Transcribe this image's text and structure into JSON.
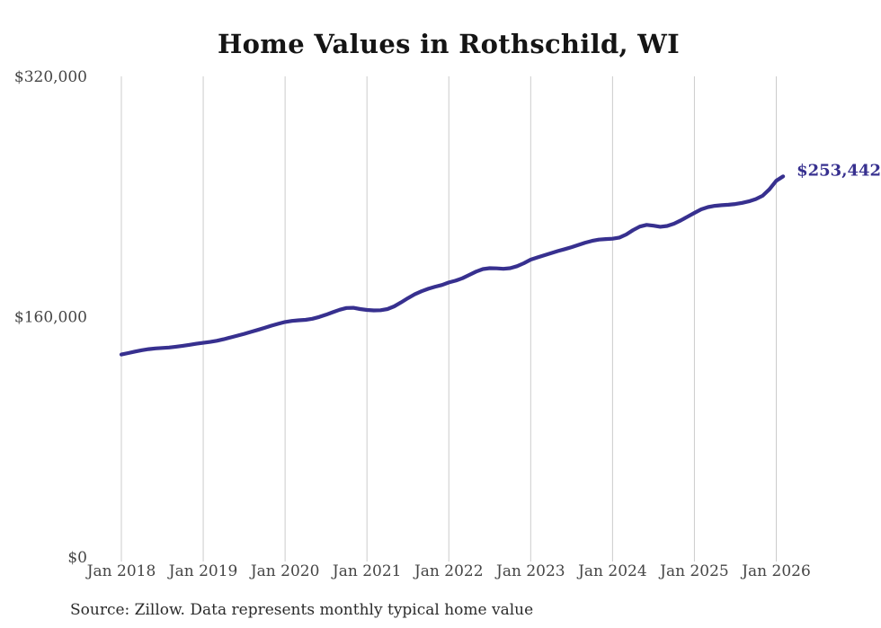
{
  "title": "Home Values in Rothschild, WI",
  "source_note": "Source: Zillow. Data represents monthly typical home value",
  "colors": {
    "line": "#37308f",
    "end_label": "#37308f",
    "gridline": "#cccccc",
    "axis_text": "#454545",
    "title_text": "#151515",
    "source_text": "#2b2b2b",
    "background": "#ffffff"
  },
  "chart_data": {
    "type": "line",
    "title": "Home Values in Rothschild, WI",
    "unit": "USD",
    "frequency": "monthly",
    "x_start": "Jan 2018",
    "x_end": "Feb 2026",
    "x_tick_labels": [
      "Jan 2018",
      "Jan 2019",
      "Jan 2020",
      "Jan 2021",
      "Jan 2022",
      "Jan 2023",
      "Jan 2024",
      "Jan 2025",
      "Jan 2026"
    ],
    "y_ticks": [
      {
        "value": 0,
        "label": "$0"
      },
      {
        "value": 160000,
        "label": "$160,000"
      },
      {
        "value": 320000,
        "label": "$320,000"
      }
    ],
    "ylim": [
      0,
      320000
    ],
    "grid": "vertical-only",
    "legend": "none",
    "last_value": 253442,
    "last_value_label": "$253,442",
    "series": [
      {
        "name": "Typical home value",
        "start": "2018-01",
        "values": [
          134800,
          135800,
          136800,
          137700,
          138400,
          138900,
          139200,
          139500,
          140000,
          140600,
          141300,
          142000,
          142600,
          143200,
          144000,
          145000,
          146200,
          147400,
          148600,
          149900,
          151200,
          152600,
          154000,
          155300,
          156500,
          157200,
          157600,
          157900,
          158600,
          159800,
          161300,
          163000,
          164600,
          165800,
          165900,
          165100,
          164500,
          164200,
          164300,
          165100,
          166900,
          169500,
          172300,
          174900,
          176900,
          178600,
          180000,
          181100,
          182800,
          184000,
          185600,
          187800,
          190000,
          191700,
          192300,
          192200,
          191900,
          192300,
          193600,
          195600,
          198000,
          199500,
          200900,
          202300,
          203700,
          205000,
          206300,
          207800,
          209300,
          210500,
          211300,
          211700,
          211900,
          212700,
          214700,
          217600,
          220000,
          221100,
          220600,
          219900,
          220400,
          221900,
          224100,
          226600,
          229100,
          231500,
          233000,
          233800,
          234200,
          234500,
          235000,
          235800,
          236800,
          238300,
          240500,
          244800,
          250500,
          253442
        ]
      }
    ]
  }
}
